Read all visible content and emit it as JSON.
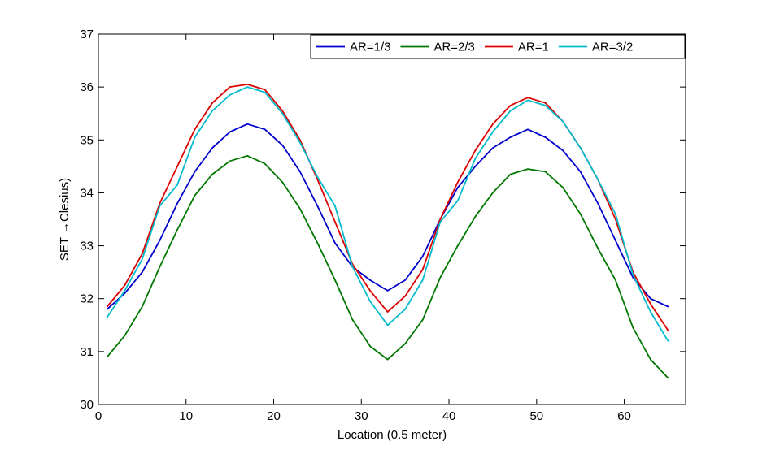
{
  "chart_data": {
    "type": "line",
    "title": "",
    "xlabel": "Location (0.5 meter)",
    "ylabel": "SET →Clesius)",
    "xlim": [
      0,
      67
    ],
    "ylim": [
      30,
      37
    ],
    "xticks": [
      0,
      10,
      20,
      30,
      40,
      50,
      60
    ],
    "yticks": [
      30,
      31,
      32,
      33,
      34,
      35,
      36,
      37
    ],
    "grid": false,
    "legend_position": "top-right",
    "series": [
      {
        "name": "AR=1/3",
        "color": "#0000cc",
        "x": [
          1,
          3,
          5,
          7,
          9,
          11,
          13,
          15,
          17,
          19,
          21,
          23,
          25,
          27,
          29,
          31,
          33,
          35,
          37,
          39,
          41,
          43,
          45,
          47,
          49,
          51,
          53,
          55,
          57,
          59,
          61,
          63,
          65
        ],
        "values": [
          31.8,
          32.1,
          32.5,
          33.1,
          33.8,
          34.4,
          34.85,
          35.15,
          35.3,
          35.2,
          34.9,
          34.4,
          33.75,
          33.05,
          32.6,
          32.35,
          32.15,
          32.35,
          32.8,
          33.5,
          34.1,
          34.5,
          34.85,
          35.05,
          35.2,
          35.05,
          34.8,
          34.4,
          33.8,
          33.1,
          32.4,
          32.0,
          31.85
        ]
      },
      {
        "name": "AR=2/3",
        "color": "#007700",
        "x": [
          1,
          3,
          5,
          7,
          9,
          11,
          13,
          15,
          17,
          19,
          21,
          23,
          25,
          27,
          29,
          31,
          33,
          35,
          37,
          39,
          41,
          43,
          45,
          47,
          49,
          51,
          53,
          55,
          57,
          59,
          61,
          63,
          65
        ],
        "values": [
          30.9,
          31.3,
          31.85,
          32.6,
          33.3,
          33.95,
          34.35,
          34.6,
          34.7,
          34.55,
          34.2,
          33.7,
          33.05,
          32.35,
          31.6,
          31.1,
          30.85,
          31.15,
          31.6,
          32.4,
          33.0,
          33.55,
          34.0,
          34.35,
          34.45,
          34.4,
          34.1,
          33.6,
          32.95,
          32.35,
          31.45,
          30.85,
          30.5
        ]
      },
      {
        "name": "AR=1",
        "color": "#dd0000",
        "x": [
          1,
          3,
          5,
          7,
          9,
          11,
          13,
          15,
          17,
          19,
          21,
          23,
          25,
          27,
          29,
          31,
          33,
          35,
          37,
          39,
          41,
          43,
          45,
          47,
          49,
          51,
          53,
          55,
          57,
          59,
          61,
          63,
          65
        ],
        "values": [
          31.85,
          32.25,
          32.85,
          33.8,
          34.5,
          35.2,
          35.7,
          36.0,
          36.05,
          35.95,
          35.55,
          35.0,
          34.25,
          33.45,
          32.65,
          32.15,
          31.75,
          32.05,
          32.55,
          33.5,
          34.2,
          34.8,
          35.3,
          35.65,
          35.8,
          35.7,
          35.35,
          34.85,
          34.25,
          33.5,
          32.5,
          31.9,
          31.4
        ]
      },
      {
        "name": "AR=3/2",
        "color": "#00bbcc",
        "x": [
          1,
          3,
          5,
          7,
          9,
          11,
          13,
          15,
          17,
          19,
          21,
          23,
          25,
          27,
          29,
          31,
          33,
          35,
          37,
          39,
          41,
          43,
          45,
          47,
          49,
          51,
          53,
          55,
          57,
          59,
          61,
          63,
          65
        ],
        "values": [
          31.65,
          32.15,
          32.75,
          33.75,
          34.15,
          35.05,
          35.55,
          35.85,
          36.0,
          35.9,
          35.5,
          34.95,
          34.3,
          33.75,
          32.6,
          31.95,
          31.5,
          31.8,
          32.35,
          33.45,
          33.85,
          34.65,
          35.15,
          35.55,
          35.75,
          35.65,
          35.35,
          34.85,
          34.25,
          33.6,
          32.45,
          31.75,
          31.2
        ]
      }
    ]
  }
}
